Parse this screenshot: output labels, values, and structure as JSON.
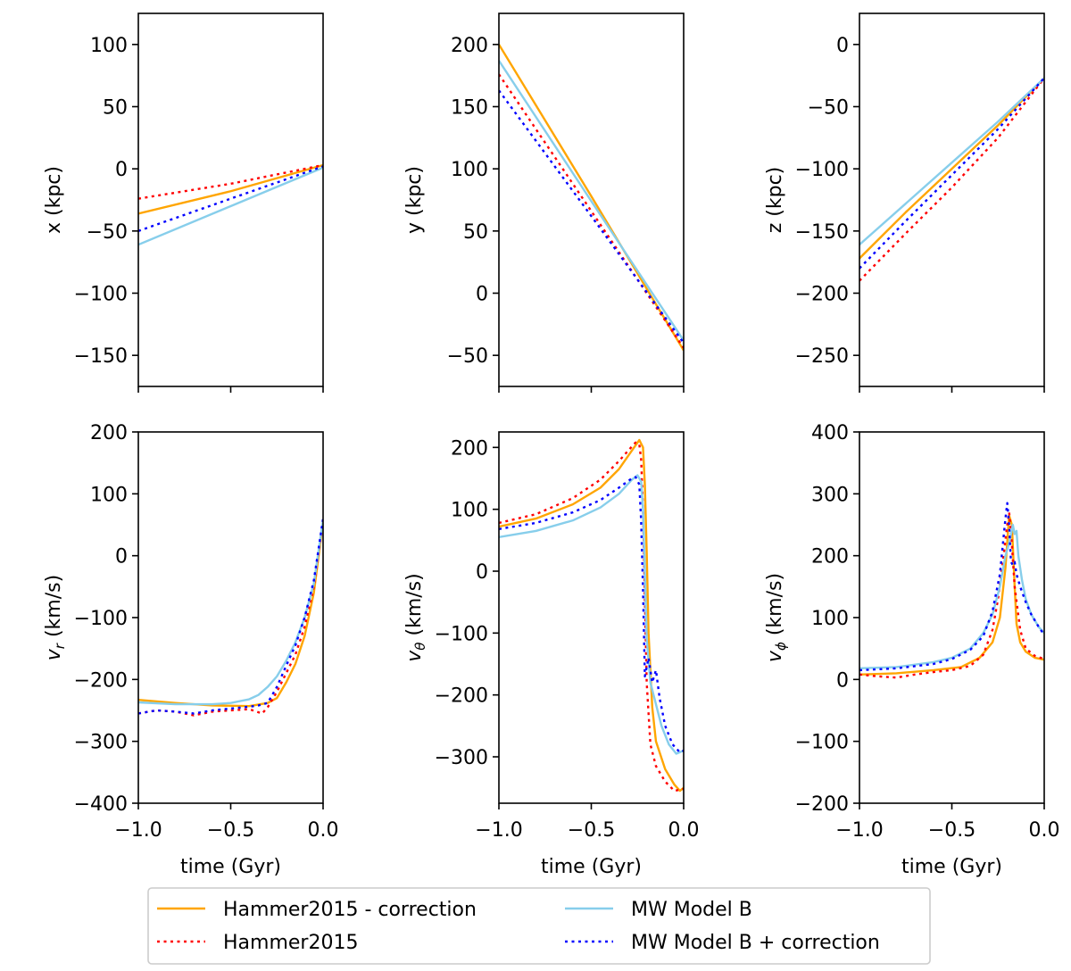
{
  "chart_data": [
    {
      "type": "line",
      "panel": "x",
      "ylabel": "x (kpc)",
      "xlabel": "",
      "xlim": [
        -1.0,
        0.0
      ],
      "ylim": [
        -175,
        125
      ],
      "yticks": [
        100,
        50,
        0,
        -50,
        -100,
        -150
      ],
      "xticks": [
        -1.0,
        -0.5,
        0.0
      ],
      "show_xticklabels": false,
      "series": [
        {
          "name": "Hammer2015 - correction",
          "x": [
            -1.0,
            -0.5,
            0.0
          ],
          "y": [
            -36,
            -18,
            3
          ]
        },
        {
          "name": "Hammer2015",
          "x": [
            -1.0,
            -0.5,
            0.0
          ],
          "y": [
            -24,
            -12,
            3
          ]
        },
        {
          "name": "MW Model B",
          "x": [
            -1.0,
            -0.5,
            0.0
          ],
          "y": [
            -61,
            -30,
            1
          ]
        },
        {
          "name": "MW Model B + correction",
          "x": [
            -1.0,
            -0.5,
            0.0
          ],
          "y": [
            -50,
            -24,
            2
          ]
        }
      ]
    },
    {
      "type": "line",
      "panel": "y",
      "ylabel": "y (kpc)",
      "xlabel": "",
      "xlim": [
        -1.0,
        0.0
      ],
      "ylim": [
        -75,
        225
      ],
      "yticks": [
        200,
        150,
        100,
        50,
        0,
        -50
      ],
      "xticks": [
        -1.0,
        -0.5,
        0.0
      ],
      "show_xticklabels": false,
      "series": [
        {
          "name": "Hammer2015 - correction",
          "x": [
            -1.0,
            -0.5,
            0.0
          ],
          "y": [
            200,
            78,
            -46
          ]
        },
        {
          "name": "Hammer2015",
          "x": [
            -1.0,
            -0.5,
            0.0
          ],
          "y": [
            176,
            66,
            -44
          ]
        },
        {
          "name": "MW Model B",
          "x": [
            -1.0,
            -0.5,
            0.0
          ],
          "y": [
            187,
            74,
            -38
          ]
        },
        {
          "name": "MW Model B + correction",
          "x": [
            -1.0,
            -0.5,
            0.0
          ],
          "y": [
            163,
            62,
            -40
          ]
        }
      ]
    },
    {
      "type": "line",
      "panel": "z",
      "ylabel": "z (kpc)",
      "xlabel": "",
      "xlim": [
        -1.0,
        0.0
      ],
      "ylim": [
        -275,
        25
      ],
      "yticks": [
        0,
        -50,
        -100,
        -150,
        -200,
        -250
      ],
      "xticks": [
        -1.0,
        -0.5,
        0.0
      ],
      "show_xticklabels": false,
      "series": [
        {
          "name": "Hammer2015 - correction",
          "x": [
            -1.0,
            -0.75,
            -0.5,
            -0.25,
            0.0
          ],
          "y": [
            -172,
            -135,
            -100,
            -65,
            -27
          ]
        },
        {
          "name": "Hammer2015",
          "x": [
            -1.0,
            -0.75,
            -0.5,
            -0.25,
            0.0
          ],
          "y": [
            -190,
            -152,
            -115,
            -75,
            -27
          ]
        },
        {
          "name": "MW Model B",
          "x": [
            -1.0,
            -0.75,
            -0.5,
            -0.25,
            0.0
          ],
          "y": [
            -161,
            -128,
            -95,
            -62,
            -27
          ]
        },
        {
          "name": "MW Model B + correction",
          "x": [
            -1.0,
            -0.75,
            -0.5,
            -0.25,
            0.0
          ],
          "y": [
            -180,
            -142,
            -105,
            -68,
            -27
          ]
        }
      ]
    },
    {
      "type": "line",
      "panel": "v_r",
      "ylabel": "v_r (km/s)",
      "xlabel": "time (Gyr)",
      "xlim": [
        -1.0,
        0.0
      ],
      "ylim": [
        -400,
        200
      ],
      "yticks": [
        200,
        100,
        0,
        -100,
        -200,
        -300,
        -400
      ],
      "xticks": [
        -1.0,
        -0.5,
        0.0
      ],
      "show_xticklabels": true,
      "series": [
        {
          "name": "Hammer2015 - correction",
          "x": [
            -1.0,
            -0.8,
            -0.6,
            -0.4,
            -0.3,
            -0.25,
            -0.2,
            -0.15,
            -0.1,
            -0.05,
            0.0
          ],
          "y": [
            -233,
            -238,
            -242,
            -243,
            -238,
            -230,
            -205,
            -175,
            -130,
            -60,
            55
          ]
        },
        {
          "name": "Hammer2015",
          "x": [
            -1.0,
            -0.9,
            -0.8,
            -0.7,
            -0.6,
            -0.5,
            -0.4,
            -0.33,
            -0.3,
            -0.25,
            -0.2,
            -0.15,
            -0.1,
            -0.05,
            0.0
          ],
          "y": [
            -255,
            -250,
            -252,
            -258,
            -252,
            -250,
            -248,
            -255,
            -245,
            -220,
            -190,
            -160,
            -115,
            -50,
            55
          ]
        },
        {
          "name": "MW Model B",
          "x": [
            -1.0,
            -0.8,
            -0.6,
            -0.5,
            -0.4,
            -0.35,
            -0.3,
            -0.25,
            -0.2,
            -0.15,
            -0.1,
            -0.05,
            0.0
          ],
          "y": [
            -237,
            -240,
            -240,
            -238,
            -232,
            -225,
            -212,
            -195,
            -170,
            -140,
            -100,
            -45,
            58
          ]
        },
        {
          "name": "MW Model B + correction",
          "x": [
            -1.0,
            -0.9,
            -0.8,
            -0.7,
            -0.6,
            -0.5,
            -0.4,
            -0.35,
            -0.3,
            -0.25,
            -0.2,
            -0.15,
            -0.1,
            -0.05,
            0.0
          ],
          "y": [
            -255,
            -250,
            -252,
            -255,
            -250,
            -247,
            -244,
            -242,
            -238,
            -212,
            -178,
            -145,
            -100,
            -40,
            60
          ]
        }
      ]
    },
    {
      "type": "line",
      "panel": "v_theta",
      "ylabel": "v_θ (km/s)",
      "xlabel": "time (Gyr)",
      "xlim": [
        -1.0,
        0.0
      ],
      "ylim": [
        -375,
        225
      ],
      "yticks": [
        200,
        100,
        0,
        -100,
        -200,
        -300
      ],
      "xticks": [
        -1.0,
        -0.5,
        0.0
      ],
      "show_xticklabels": true,
      "series": [
        {
          "name": "Hammer2015 - correction",
          "x": [
            -1.0,
            -0.8,
            -0.6,
            -0.45,
            -0.35,
            -0.28,
            -0.24,
            -0.22,
            -0.21,
            -0.2,
            -0.19,
            -0.17,
            -0.15,
            -0.1,
            -0.05,
            -0.02,
            0.0
          ],
          "y": [
            72,
            85,
            108,
            135,
            165,
            195,
            212,
            200,
            140,
            30,
            -100,
            -220,
            -275,
            -320,
            -345,
            -355,
            -350
          ]
        },
        {
          "name": "Hammer2015",
          "x": [
            -1.0,
            -0.8,
            -0.6,
            -0.45,
            -0.35,
            -0.3,
            -0.26,
            -0.24,
            -0.23,
            -0.22,
            -0.21,
            -0.2,
            -0.18,
            -0.15,
            -0.1,
            -0.05,
            0.0
          ],
          "y": [
            78,
            92,
            118,
            148,
            178,
            195,
            208,
            205,
            180,
            100,
            -40,
            -180,
            -280,
            -315,
            -340,
            -355,
            -352
          ]
        },
        {
          "name": "MW Model B",
          "x": [
            -1.0,
            -0.8,
            -0.6,
            -0.45,
            -0.35,
            -0.28,
            -0.25,
            -0.23,
            -0.22,
            -0.21,
            -0.2,
            -0.18,
            -0.15,
            -0.12,
            -0.08,
            -0.04,
            0.0
          ],
          "y": [
            55,
            65,
            82,
            103,
            125,
            148,
            155,
            145,
            100,
            0,
            -110,
            -180,
            -215,
            -250,
            -280,
            -295,
            -290
          ]
        },
        {
          "name": "MW Model B + correction",
          "x": [
            -1.0,
            -0.8,
            -0.6,
            -0.45,
            -0.35,
            -0.28,
            -0.26,
            -0.24,
            -0.23,
            -0.22,
            -0.21,
            -0.19,
            -0.17,
            -0.15,
            -0.13,
            -0.1,
            -0.06,
            -0.02,
            0.0
          ],
          "y": [
            68,
            78,
            95,
            115,
            135,
            150,
            152,
            140,
            80,
            -30,
            -170,
            -140,
            -180,
            -160,
            -205,
            -250,
            -280,
            -293,
            -290
          ]
        }
      ]
    },
    {
      "type": "line",
      "panel": "v_phi",
      "ylabel": "v_ϕ (km/s)",
      "xlabel": "time (Gyr)",
      "xlim": [
        -1.0,
        0.0
      ],
      "ylim": [
        -200,
        400
      ],
      "yticks": [
        400,
        300,
        200,
        100,
        0,
        -100,
        -200
      ],
      "xticks": [
        -1.0,
        -0.5,
        0.0
      ],
      "show_xticklabels": true,
      "series": [
        {
          "name": "Hammer2015 - correction",
          "x": [
            -1.0,
            -0.8,
            -0.6,
            -0.45,
            -0.35,
            -0.28,
            -0.24,
            -0.21,
            -0.19,
            -0.175,
            -0.16,
            -0.15,
            -0.13,
            -0.1,
            -0.05,
            0.0
          ],
          "y": [
            8,
            10,
            15,
            20,
            35,
            60,
            100,
            180,
            265,
            250,
            150,
            90,
            60,
            45,
            35,
            32
          ]
        },
        {
          "name": "Hammer2015",
          "x": [
            -1.0,
            -0.9,
            -0.8,
            -0.7,
            -0.6,
            -0.5,
            -0.4,
            -0.33,
            -0.28,
            -0.25,
            -0.22,
            -0.2,
            -0.19,
            -0.18,
            -0.16,
            -0.13,
            -0.1,
            -0.05,
            0.0
          ],
          "y": [
            8,
            5,
            3,
            8,
            12,
            15,
            22,
            40,
            80,
            130,
            200,
            250,
            270,
            240,
            150,
            80,
            50,
            38,
            33
          ]
        },
        {
          "name": "MW Model B",
          "x": [
            -1.0,
            -0.8,
            -0.6,
            -0.5,
            -0.4,
            -0.33,
            -0.28,
            -0.24,
            -0.21,
            -0.19,
            -0.17,
            -0.16,
            -0.15,
            -0.14,
            -0.12,
            -0.1,
            -0.07,
            -0.03,
            0.0
          ],
          "y": [
            18,
            20,
            28,
            35,
            50,
            75,
            105,
            150,
            200,
            220,
            250,
            235,
            240,
            200,
            160,
            130,
            105,
            85,
            75
          ]
        },
        {
          "name": "MW Model B + correction",
          "x": [
            -1.0,
            -0.8,
            -0.6,
            -0.5,
            -0.4,
            -0.33,
            -0.28,
            -0.24,
            -0.22,
            -0.21,
            -0.2,
            -0.19,
            -0.18,
            -0.17,
            -0.16,
            -0.15,
            -0.13,
            -0.1,
            -0.07,
            -0.03,
            0.0
          ],
          "y": [
            15,
            18,
            25,
            33,
            48,
            70,
            110,
            170,
            230,
            260,
            285,
            250,
            190,
            185,
            190,
            170,
            150,
            125,
            105,
            85,
            72
          ]
        }
      ]
    }
  ],
  "legend": {
    "entries": [
      {
        "label": "Hammer2015 - correction",
        "color": "#ffa500",
        "style": "solid"
      },
      {
        "label": "Hammer2015",
        "color": "#ff0000",
        "style": "dotted"
      },
      {
        "label": "MW Model B",
        "color": "#87ceeb",
        "style": "solid"
      },
      {
        "label": "MW Model B + correction",
        "color": "#0000ff",
        "style": "dotted"
      }
    ]
  }
}
